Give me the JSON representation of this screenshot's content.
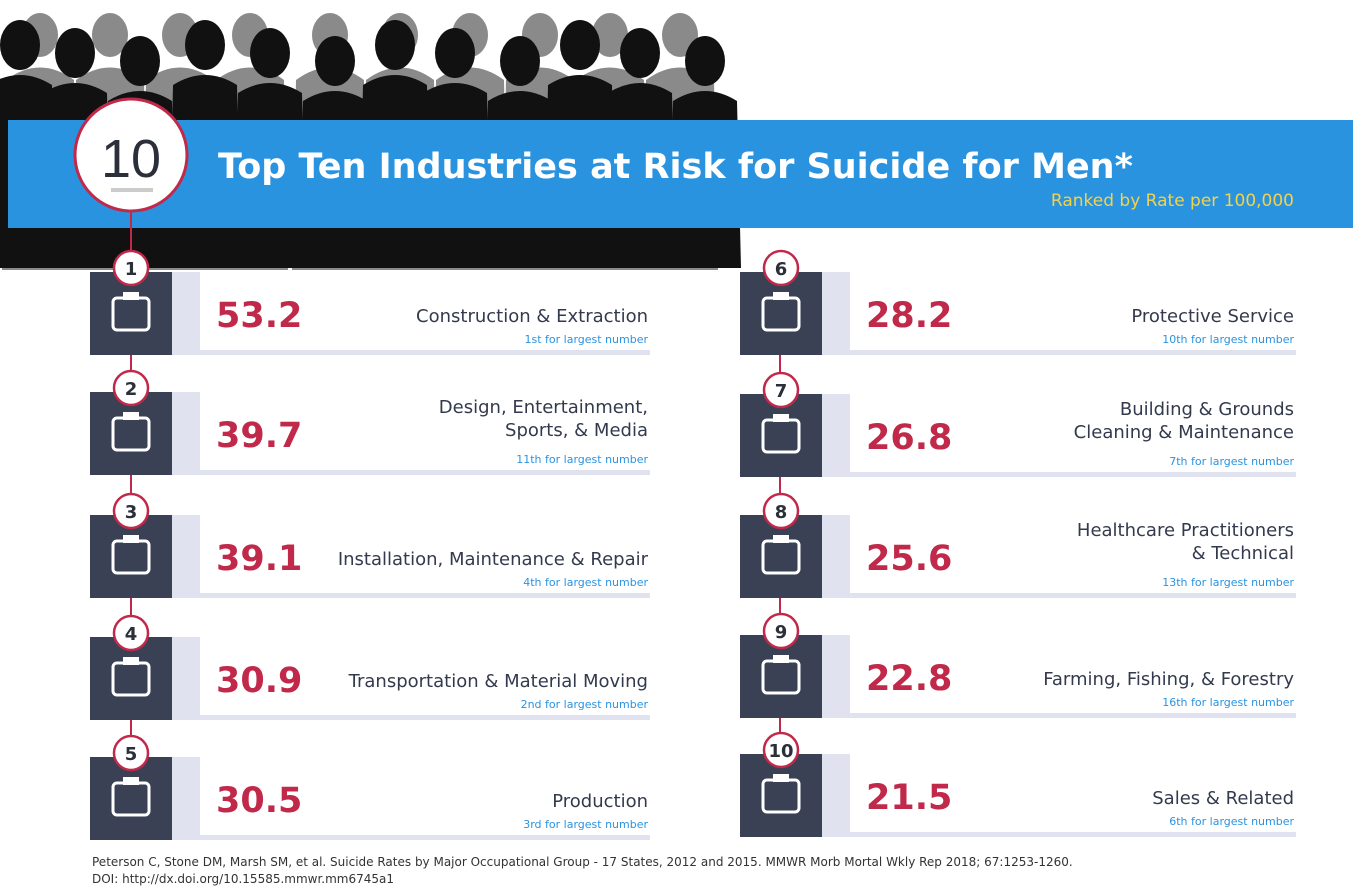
{
  "header": {
    "badge": "10",
    "title": "Top Ten Industries at Risk for Suicide for Men*",
    "subtitle": "Ranked by Rate per 100,000"
  },
  "items": [
    {
      "rank": 1,
      "rate": 53.2,
      "industry": [
        "Construction & Extraction"
      ],
      "note": "1st for largest number"
    },
    {
      "rank": 2,
      "rate": 39.7,
      "industry": [
        "Design, Entertainment,",
        "Sports, & Media"
      ],
      "note": "11th for largest number"
    },
    {
      "rank": 3,
      "rate": 39.1,
      "industry": [
        "Installation, Maintenance & Repair"
      ],
      "note": "4th for largest number"
    },
    {
      "rank": 4,
      "rate": 30.9,
      "industry": [
        "Transportation & Material Moving"
      ],
      "note": "2nd for largest number"
    },
    {
      "rank": 5,
      "rate": 30.5,
      "industry": [
        "Production"
      ],
      "note": "3rd for largest number"
    },
    {
      "rank": 6,
      "rate": 28.2,
      "industry": [
        "Protective Service"
      ],
      "note": "10th for largest number"
    },
    {
      "rank": 7,
      "rate": 26.8,
      "industry": [
        "Building & Grounds",
        "Cleaning & Maintenance"
      ],
      "note": "7th for largest number"
    },
    {
      "rank": 8,
      "rate": 25.6,
      "industry": [
        "Healthcare Practitioners",
        "& Technical"
      ],
      "note": "13th for largest number"
    },
    {
      "rank": 9,
      "rate": 22.8,
      "industry": [
        "Farming, Fishing, & Forestry"
      ],
      "note": "16th for largest number"
    },
    {
      "rank": 10,
      "rate": 21.5,
      "industry": [
        "Sales & Related"
      ],
      "note": "6th for largest number"
    }
  ],
  "footer": {
    "citation": "Peterson C, Stone DM, Marsh SM, et al. Suicide Rates by Major Occupational Group - 17 States, 2012 and 2015. MMWR Morb Mortal Wkly Rep 2018; 67:1253-1260.",
    "doi": "DOI: http://dx.doi.org/10.15585.mmwr.mm6745a1"
  }
}
